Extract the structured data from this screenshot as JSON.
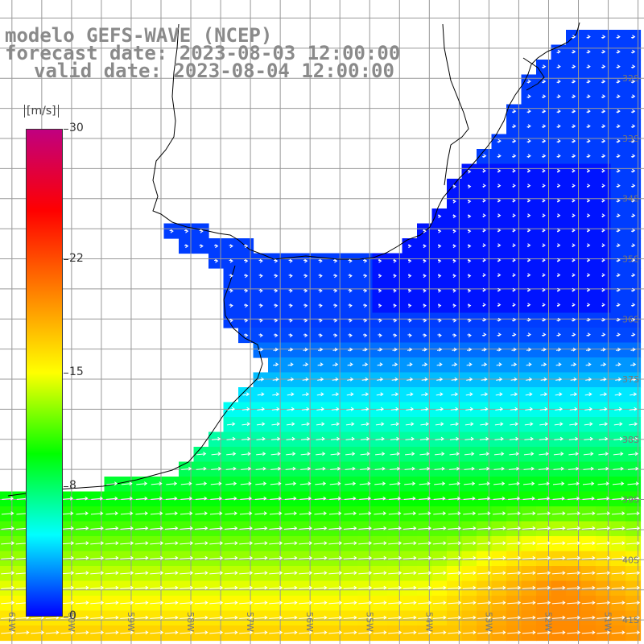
{
  "title": {
    "line1": "modelo GEFS-WAVE (NCEP)",
    "line2": "forecast date: 2023-08-03 12:00:00",
    "line3": "valid date: 2023-08-04 12:00:00"
  },
  "colorbar": {
    "unit": "[m/s]",
    "min": 0,
    "max": 30,
    "ticks": [
      {
        "value": 30,
        "label": "30"
      },
      {
        "value": 22,
        "label": "22"
      },
      {
        "value": 15,
        "label": "15"
      },
      {
        "value": 8,
        "label": "8"
      },
      {
        "value": 0,
        "label": "0"
      }
    ],
    "colors": [
      "#0000ff",
      "#00ffff",
      "#00ff00",
      "#ffff00",
      "#ff8000",
      "#ff0000",
      "#c00080"
    ]
  },
  "map": {
    "lon_range": [
      -61.2,
      -50.4
    ],
    "lat_range": [
      -41.4,
      -30.7
    ],
    "lat_labels": [
      {
        "value": -32,
        "label": "32S"
      },
      {
        "value": -33,
        "label": "33S"
      },
      {
        "value": -34,
        "label": "34S"
      },
      {
        "value": -35,
        "label": "35S"
      },
      {
        "value": -36,
        "label": "36S"
      },
      {
        "value": -37,
        "label": "37S"
      },
      {
        "value": -38,
        "label": "38S"
      },
      {
        "value": -39,
        "label": "39S"
      },
      {
        "value": -40,
        "label": "40S"
      },
      {
        "value": -41,
        "label": "41S"
      }
    ],
    "lon_labels": [
      {
        "value": -61,
        "label": "61W"
      },
      {
        "value": -60,
        "label": "60W"
      },
      {
        "value": -59,
        "label": "59W"
      },
      {
        "value": -58,
        "label": "58W"
      },
      {
        "value": -57,
        "label": "57W"
      },
      {
        "value": -56,
        "label": "56W"
      },
      {
        "value": -55,
        "label": "55W"
      },
      {
        "value": -54,
        "label": "54W"
      },
      {
        "value": -53,
        "label": "53W"
      },
      {
        "value": -52,
        "label": "52W"
      },
      {
        "value": -51,
        "label": "51W"
      }
    ],
    "land_color": "#ffffff",
    "grid_color": "#999999",
    "arrow_color": "#ffffff"
  }
}
